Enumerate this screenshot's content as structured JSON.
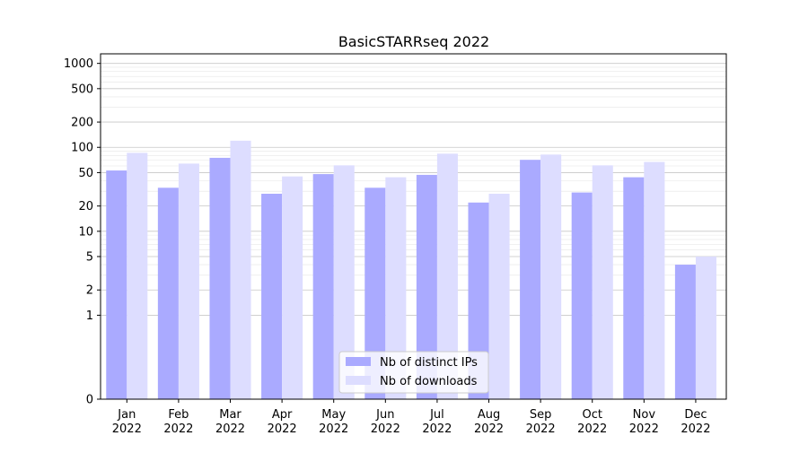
{
  "chart_data": {
    "type": "bar",
    "title": "BasicSTARRseq 2022",
    "xlabel": "",
    "ylabel": "",
    "yscale": "symlog",
    "ylim": [
      0,
      1300
    ],
    "yticks": [
      0,
      1,
      2,
      5,
      10,
      20,
      50,
      100,
      200,
      500,
      1000
    ],
    "ytick_labels": [
      "0",
      "1",
      "2",
      "5",
      "10",
      "20",
      "50",
      "100",
      "200",
      "500",
      "1000"
    ],
    "grid": "y",
    "legend_position": "bottom-center",
    "categories": [
      "Jan\n2022",
      "Feb\n2022",
      "Mar\n2022",
      "Apr\n2022",
      "May\n2022",
      "Jun\n2022",
      "Jul\n2022",
      "Aug\n2022",
      "Sep\n2022",
      "Oct\n2022",
      "Nov\n2022",
      "Dec\n2022"
    ],
    "category_lines": [
      [
        "Jan",
        "2022"
      ],
      [
        "Feb",
        "2022"
      ],
      [
        "Mar",
        "2022"
      ],
      [
        "Apr",
        "2022"
      ],
      [
        "May",
        "2022"
      ],
      [
        "Jun",
        "2022"
      ],
      [
        "Jul",
        "2022"
      ],
      [
        "Aug",
        "2022"
      ],
      [
        "Sep",
        "2022"
      ],
      [
        "Oct",
        "2022"
      ],
      [
        "Nov",
        "2022"
      ],
      [
        "Dec",
        "2022"
      ]
    ],
    "series": [
      {
        "name": "Nb of distinct IPs",
        "color": "#aaaaff",
        "values": [
          53,
          33,
          75,
          28,
          48,
          33,
          47,
          22,
          71,
          29,
          44,
          4
        ]
      },
      {
        "name": "Nb of downloads",
        "color": "#ddddff",
        "values": [
          86,
          64,
          120,
          45,
          61,
          44,
          84,
          28,
          82,
          61,
          67,
          5
        ]
      }
    ]
  }
}
